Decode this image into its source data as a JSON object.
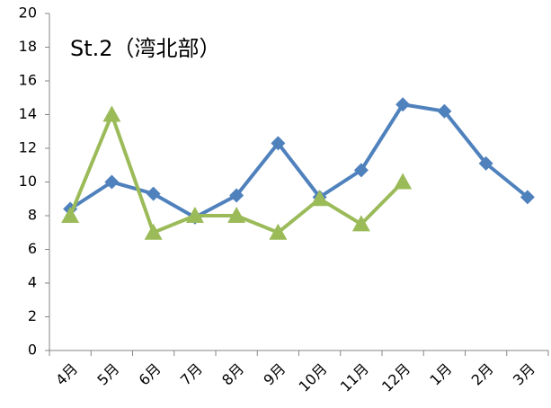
{
  "chart_data": {
    "type": "line",
    "title": "St.2（湾北部）",
    "categories": [
      "4月",
      "5月",
      "6月",
      "7月",
      "8月",
      "9月",
      "10月",
      "11月",
      "12月",
      "1月",
      "2月",
      "3月"
    ],
    "series": [
      {
        "color": "#4f81bd",
        "marker": "diamond",
        "values": [
          8.4,
          10.0,
          9.3,
          7.9,
          9.2,
          12.3,
          9.1,
          10.7,
          14.6,
          14.2,
          11.1,
          9.1
        ]
      },
      {
        "color": "#9bbb59",
        "marker": "triangle",
        "values": [
          8,
          14,
          7,
          8,
          8,
          7,
          9,
          7.5,
          10,
          null,
          null,
          null
        ]
      }
    ],
    "ylim": [
      0,
      20
    ],
    "yticks": [
      0,
      2,
      4,
      6,
      8,
      10,
      12,
      14,
      16,
      18,
      20
    ],
    "grid": false
  }
}
